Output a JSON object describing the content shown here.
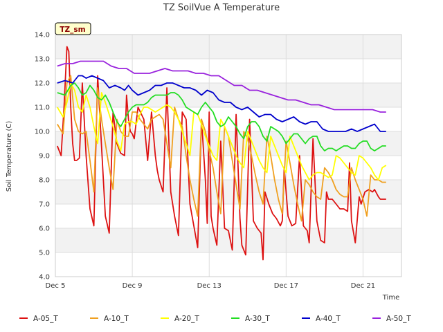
{
  "chart_data": {
    "type": "line",
    "title": "TZ SoilVue A Temperature",
    "xlabel": "Time",
    "ylabel": "Soil Temperature (C)",
    "tag": "TZ_sm",
    "ylim": [
      4.0,
      14.0
    ],
    "yticks": [
      "4.0",
      "5.0",
      "6.0",
      "7.0",
      "8.0",
      "9.0",
      "10.0",
      "11.0",
      "12.0",
      "13.0",
      "14.0"
    ],
    "xlim": [
      5.0,
      23.0
    ],
    "xticks": [
      {
        "x": 5,
        "label": "Dec 5"
      },
      {
        "x": 9,
        "label": "Dec 9"
      },
      {
        "x": 13,
        "label": "Dec 13"
      },
      {
        "x": 17,
        "label": "Dec 17"
      },
      {
        "x": 21,
        "label": "Dec 21"
      }
    ],
    "grid": true,
    "legend_position": "bottom",
    "series": [
      {
        "name": "A-05_T",
        "color": "#dd1111",
        "x": [
          5.1,
          5.3,
          5.45,
          5.6,
          5.7,
          5.8,
          5.9,
          6.0,
          6.1,
          6.25,
          6.4,
          6.6,
          6.8,
          7.0,
          7.2,
          7.6,
          7.8,
          8.0,
          8.2,
          8.4,
          8.6,
          8.7,
          8.8,
          8.9,
          9.0,
          9.1,
          9.3,
          9.6,
          9.8,
          10.0,
          10.2,
          10.3,
          10.4,
          10.6,
          10.8,
          11.0,
          11.2,
          11.4,
          11.6,
          11.8,
          12.0,
          12.2,
          12.4,
          12.6,
          12.8,
          12.9,
          13.0,
          13.1,
          13.2,
          13.4,
          13.6,
          13.8,
          14.0,
          14.2,
          14.4,
          14.6,
          14.7,
          14.9,
          15.1,
          15.3,
          15.5,
          15.7,
          15.8,
          15.9,
          16.1,
          16.3,
          16.5,
          16.7,
          16.8,
          16.9,
          17.1,
          17.3,
          17.5,
          17.7,
          17.9,
          18.1,
          18.2,
          18.4,
          18.6,
          18.8,
          19.0,
          19.1,
          19.2,
          19.4,
          19.6,
          19.8,
          20.0,
          20.2,
          20.3,
          20.4,
          20.6,
          20.8,
          20.9,
          21.1,
          21.3,
          21.5,
          21.6,
          21.8,
          21.9,
          22.0,
          22.2
        ],
        "y": [
          9.4,
          9.0,
          11.0,
          13.5,
          13.3,
          11.0,
          9.5,
          8.8,
          8.8,
          8.9,
          12.0,
          9.0,
          6.8,
          6.1,
          12.3,
          6.5,
          5.8,
          10.8,
          9.5,
          9.1,
          9.0,
          11.5,
          10.5,
          10.0,
          9.9,
          9.7,
          11.0,
          10.5,
          8.8,
          10.8,
          9.0,
          8.4,
          8.0,
          7.5,
          11.8,
          7.5,
          6.5,
          5.7,
          10.8,
          10.5,
          7.0,
          6.1,
          5.2,
          10.5,
          8.0,
          6.2,
          10.8,
          6.5,
          6.0,
          5.3,
          9.6,
          6.0,
          5.9,
          5.1,
          10.7,
          6.4,
          5.3,
          4.9,
          10.5,
          6.3,
          6.0,
          5.8,
          4.7,
          7.5,
          7.0,
          6.6,
          6.4,
          6.1,
          6.3,
          8.5,
          6.5,
          6.1,
          6.2,
          9.0,
          6.1,
          5.9,
          5.4,
          9.7,
          6.3,
          5.5,
          5.4,
          7.5,
          7.2,
          7.2,
          7.0,
          6.8,
          6.8,
          6.7,
          8.7,
          6.3,
          5.4,
          7.3,
          7.0,
          7.5,
          7.6,
          7.5,
          7.6,
          7.3,
          7.2,
          7.2,
          7.2
        ]
      },
      {
        "name": "A-10_T",
        "color": "#f0a020",
        "x": [
          5.1,
          5.4,
          5.6,
          5.8,
          6.0,
          6.2,
          6.4,
          6.6,
          6.8,
          7.0,
          7.2,
          7.4,
          7.6,
          7.8,
          8.0,
          8.2,
          8.4,
          8.6,
          8.8,
          9.0,
          9.2,
          9.4,
          9.6,
          9.8,
          10.0,
          10.2,
          10.4,
          10.6,
          10.8,
          11.0,
          11.2,
          11.4,
          11.6,
          11.8,
          12.0,
          12.2,
          12.4,
          12.6,
          12.8,
          13.0,
          13.2,
          13.4,
          13.6,
          13.8,
          14.0,
          14.2,
          14.4,
          14.6,
          14.8,
          15.0,
          15.2,
          15.4,
          15.6,
          15.8,
          16.0,
          16.2,
          16.4,
          16.6,
          16.8,
          17.0,
          17.2,
          17.4,
          17.6,
          17.8,
          18.0,
          18.2,
          18.4,
          18.6,
          18.8,
          19.0,
          19.2,
          19.4,
          19.6,
          19.8,
          20.0,
          20.2,
          20.4,
          20.6,
          20.8,
          21.0,
          21.2,
          21.4,
          21.6,
          21.8,
          22.0,
          22.2
        ],
        "y": [
          10.3,
          9.9,
          12.0,
          12.3,
          10.5,
          10.0,
          9.9,
          10.0,
          8.8,
          7.5,
          11.8,
          10.5,
          9.5,
          8.5,
          7.6,
          10.5,
          10.0,
          9.8,
          9.8,
          10.8,
          10.8,
          10.5,
          10.3,
          10.1,
          10.5,
          10.6,
          10.7,
          10.5,
          9.5,
          8.5,
          11.0,
          10.5,
          10.2,
          9.0,
          8.0,
          7.2,
          6.5,
          10.5,
          10.0,
          9.2,
          8.5,
          7.5,
          6.6,
          10.2,
          9.8,
          8.8,
          7.8,
          6.8,
          10.0,
          9.7,
          9.0,
          8.2,
          7.5,
          7.0,
          9.8,
          9.0,
          8.0,
          7.2,
          6.6,
          9.6,
          8.7,
          7.8,
          7.0,
          6.3,
          8.0,
          7.8,
          7.5,
          7.3,
          7.2,
          8.5,
          8.3,
          8.0,
          7.6,
          7.4,
          7.3,
          7.3,
          8.5,
          8.0,
          7.6,
          7.2,
          6.5,
          8.2,
          8.0,
          8.0,
          7.9,
          7.9
        ]
      },
      {
        "name": "A-20_T",
        "color": "#ffff00",
        "x": [
          5.1,
          5.4,
          5.6,
          5.8,
          6.0,
          6.2,
          6.4,
          6.6,
          6.8,
          7.0,
          7.2,
          7.4,
          7.6,
          7.8,
          8.0,
          8.2,
          8.4,
          8.6,
          8.8,
          9.0,
          9.2,
          9.4,
          9.6,
          9.8,
          10.0,
          10.2,
          10.4,
          10.6,
          10.8,
          11.0,
          11.2,
          11.4,
          11.6,
          11.8,
          12.0,
          12.2,
          12.4,
          12.6,
          12.8,
          13.0,
          13.2,
          13.4,
          13.6,
          13.8,
          14.0,
          14.2,
          14.4,
          14.6,
          14.8,
          15.0,
          15.2,
          15.4,
          15.6,
          15.8,
          16.0,
          16.2,
          16.4,
          16.6,
          16.8,
          17.0,
          17.2,
          17.4,
          17.6,
          17.8,
          18.0,
          18.2,
          18.4,
          18.6,
          18.8,
          19.0,
          19.2,
          19.4,
          19.6,
          19.8,
          20.0,
          20.2,
          20.4,
          20.6,
          20.8,
          21.0,
          21.2,
          21.4,
          21.6,
          21.8,
          22.0,
          22.2
        ],
        "y": [
          11.0,
          10.6,
          11.2,
          12.0,
          11.7,
          11.0,
          10.8,
          11.5,
          11.0,
          10.2,
          9.5,
          11.6,
          11.2,
          10.7,
          10.2,
          9.6,
          9.2,
          10.3,
          10.4,
          10.4,
          10.3,
          10.7,
          11.0,
          11.0,
          10.9,
          10.8,
          10.9,
          11.0,
          11.1,
          11.0,
          10.8,
          10.5,
          10.0,
          9.5,
          9.0,
          10.8,
          10.7,
          10.3,
          9.8,
          9.4,
          9.0,
          8.8,
          10.5,
          10.2,
          9.8,
          9.4,
          9.0,
          8.7,
          8.5,
          10.0,
          9.6,
          9.2,
          8.8,
          8.5,
          8.3,
          9.8,
          9.4,
          9.0,
          8.6,
          8.3,
          9.8,
          9.4,
          9.0,
          8.6,
          8.3,
          8.0,
          8.2,
          8.3,
          8.3,
          8.2,
          8.1,
          8.2,
          9.0,
          8.9,
          8.7,
          8.5,
          8.3,
          8.2,
          9.0,
          8.9,
          8.7,
          8.5,
          8.2,
          8.0,
          8.5,
          8.6
        ]
      },
      {
        "name": "A-30_T",
        "color": "#22dd22",
        "x": [
          5.1,
          5.5,
          5.8,
          6.0,
          6.2,
          6.4,
          6.6,
          6.8,
          7.0,
          7.2,
          7.4,
          7.6,
          7.8,
          8.0,
          8.2,
          8.4,
          8.6,
          8.8,
          9.0,
          9.2,
          9.4,
          9.6,
          9.8,
          10.0,
          10.2,
          10.4,
          10.6,
          10.8,
          11.0,
          11.2,
          11.4,
          11.6,
          11.8,
          12.0,
          12.2,
          12.4,
          12.6,
          12.8,
          13.0,
          13.2,
          13.4,
          13.6,
          13.8,
          14.0,
          14.2,
          14.4,
          14.6,
          14.8,
          15.0,
          15.2,
          15.4,
          15.6,
          15.8,
          16.0,
          16.2,
          16.4,
          16.6,
          16.8,
          17.0,
          17.2,
          17.4,
          17.6,
          17.8,
          18.0,
          18.2,
          18.4,
          18.6,
          18.8,
          19.0,
          19.2,
          19.4,
          19.6,
          19.8,
          20.0,
          20.2,
          20.4,
          20.6,
          20.8,
          21.0,
          21.2,
          21.4,
          21.6,
          21.8,
          22.0,
          22.2
        ],
        "y": [
          11.6,
          11.5,
          11.9,
          12.0,
          11.8,
          11.5,
          11.6,
          11.9,
          11.7,
          11.4,
          11.3,
          11.5,
          11.2,
          10.8,
          10.4,
          10.2,
          10.5,
          10.8,
          11.0,
          11.1,
          11.1,
          11.1,
          11.2,
          11.4,
          11.5,
          11.5,
          11.5,
          11.5,
          11.6,
          11.6,
          11.5,
          11.3,
          11.0,
          10.9,
          10.8,
          10.7,
          11.0,
          11.2,
          11.0,
          10.8,
          10.4,
          10.2,
          10.3,
          10.6,
          10.4,
          10.2,
          9.9,
          9.7,
          10.2,
          10.4,
          10.4,
          10.2,
          9.8,
          9.6,
          10.2,
          10.1,
          10.0,
          9.8,
          9.5,
          9.7,
          9.9,
          9.9,
          9.7,
          9.5,
          9.7,
          9.8,
          9.8,
          9.4,
          9.2,
          9.3,
          9.3,
          9.2,
          9.3,
          9.4,
          9.4,
          9.3,
          9.3,
          9.5,
          9.6,
          9.6,
          9.3,
          9.2,
          9.3,
          9.4,
          9.4
        ]
      },
      {
        "name": "A-40_T",
        "color": "#0000cc",
        "x": [
          5.1,
          5.5,
          5.9,
          6.2,
          6.4,
          6.6,
          6.9,
          7.2,
          7.5,
          7.8,
          8.1,
          8.4,
          8.6,
          8.8,
          9.0,
          9.3,
          9.6,
          9.9,
          10.2,
          10.5,
          10.8,
          11.1,
          11.4,
          11.7,
          12.0,
          12.3,
          12.6,
          12.9,
          13.2,
          13.5,
          13.8,
          14.1,
          14.4,
          14.7,
          15.0,
          15.3,
          15.6,
          15.9,
          16.2,
          16.5,
          16.8,
          17.1,
          17.4,
          17.7,
          18.0,
          18.3,
          18.6,
          18.9,
          19.2,
          19.5,
          19.8,
          20.1,
          20.4,
          20.7,
          21.0,
          21.3,
          21.6,
          21.9,
          22.2
        ],
        "y": [
          12.0,
          12.1,
          12.0,
          12.3,
          12.3,
          12.2,
          12.3,
          12.2,
          12.1,
          11.8,
          11.9,
          11.8,
          11.7,
          11.9,
          11.7,
          11.5,
          11.6,
          11.7,
          11.9,
          11.9,
          12.0,
          12.0,
          11.9,
          11.8,
          11.8,
          11.7,
          11.5,
          11.7,
          11.6,
          11.3,
          11.2,
          11.2,
          11.0,
          10.9,
          11.0,
          10.8,
          10.6,
          10.7,
          10.7,
          10.5,
          10.4,
          10.5,
          10.6,
          10.4,
          10.3,
          10.4,
          10.4,
          10.1,
          10.0,
          10.0,
          10.0,
          10.0,
          10.1,
          10.0,
          10.1,
          10.2,
          10.3,
          10.0,
          10.0
        ]
      },
      {
        "name": "A-50_T",
        "color": "#9922dd",
        "x": [
          5.1,
          5.5,
          5.9,
          6.3,
          6.7,
          7.1,
          7.5,
          7.9,
          8.3,
          8.7,
          9.1,
          9.5,
          9.9,
          10.3,
          10.7,
          11.1,
          11.5,
          11.9,
          12.3,
          12.7,
          13.1,
          13.5,
          13.9,
          14.3,
          14.7,
          15.1,
          15.5,
          15.9,
          16.3,
          16.7,
          17.1,
          17.5,
          17.9,
          18.3,
          18.7,
          19.1,
          19.5,
          19.9,
          20.3,
          20.7,
          21.1,
          21.5,
          21.9,
          22.2
        ],
        "y": [
          12.7,
          12.8,
          12.8,
          12.9,
          12.9,
          12.9,
          12.9,
          12.7,
          12.6,
          12.6,
          12.4,
          12.4,
          12.4,
          12.5,
          12.6,
          12.5,
          12.5,
          12.5,
          12.4,
          12.4,
          12.3,
          12.3,
          12.1,
          11.9,
          11.9,
          11.7,
          11.7,
          11.6,
          11.5,
          11.4,
          11.3,
          11.3,
          11.2,
          11.1,
          11.1,
          11.0,
          10.9,
          10.9,
          10.9,
          10.9,
          10.9,
          10.9,
          10.8,
          10.8
        ]
      }
    ]
  }
}
